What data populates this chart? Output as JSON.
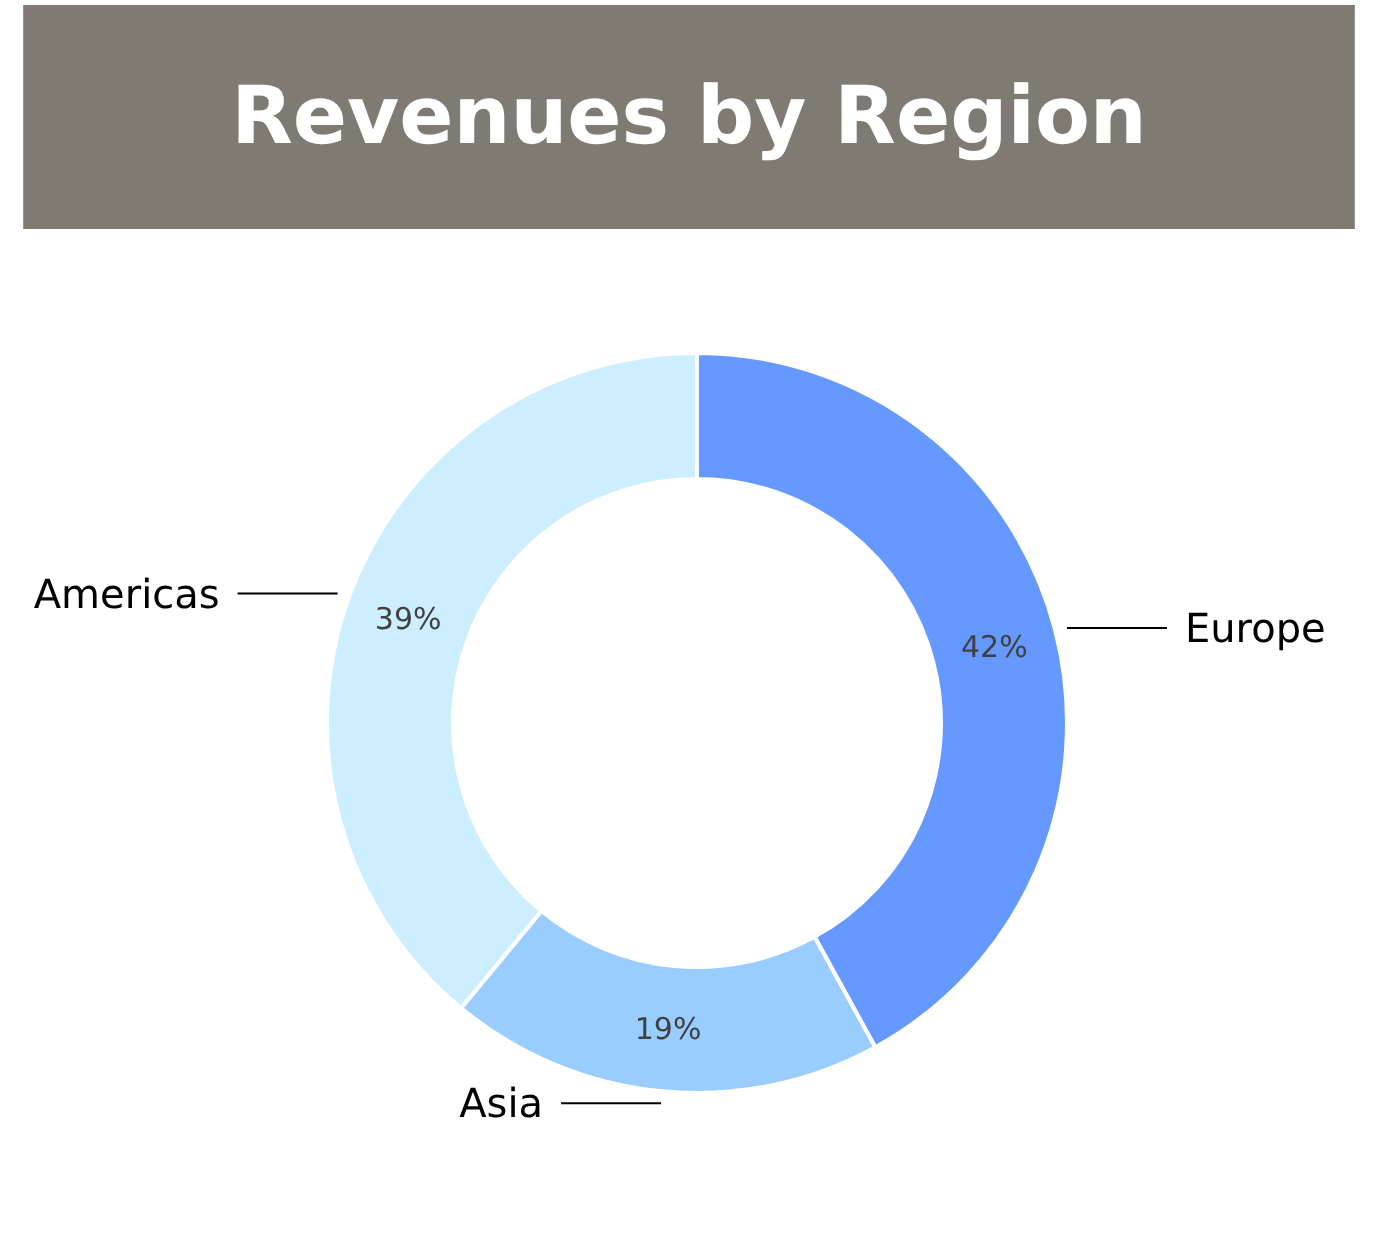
{
  "chart_data": {
    "type": "donut",
    "title": "Revenues by Region",
    "categories": [
      "Europe",
      "Asia",
      "Americas"
    ],
    "values": [
      42,
      19,
      39
    ],
    "colors": [
      "#6699ff",
      "#99ccff",
      "#cceeff"
    ],
    "value_labels": [
      "42%",
      "19%",
      "39%"
    ]
  }
}
